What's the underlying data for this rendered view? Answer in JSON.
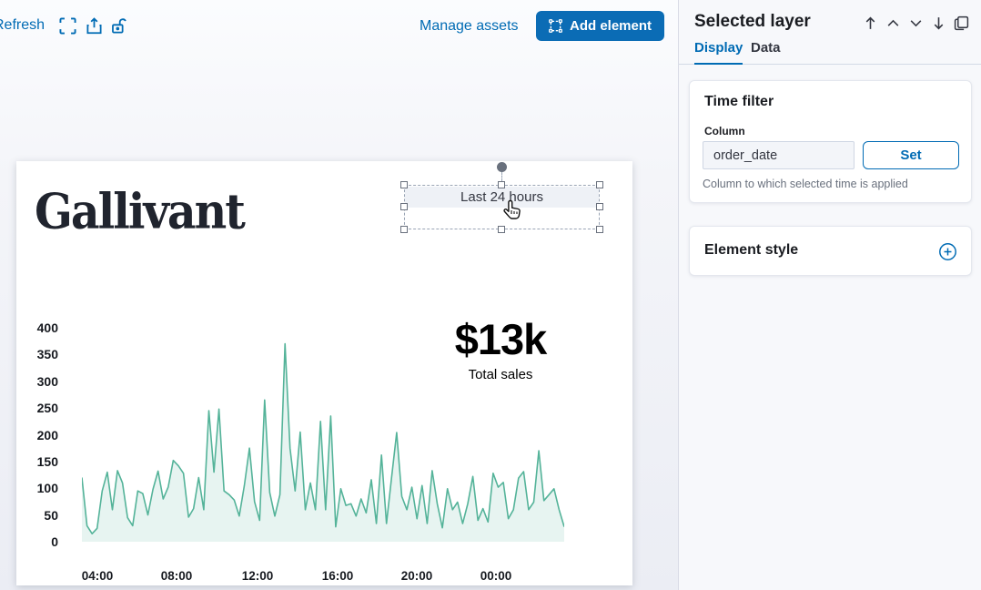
{
  "toolbar": {
    "refresh_label": "Refresh",
    "manage_assets_label": "Manage assets",
    "add_element_label": "Add element"
  },
  "sidebar": {
    "title": "Selected layer",
    "tabs": [
      {
        "label": "Display",
        "active": true
      },
      {
        "label": "Data",
        "active": false
      }
    ],
    "time_filter": {
      "title": "Time filter",
      "column_label": "Column",
      "column_value": "order_date",
      "set_label": "Set",
      "help": "Column to which selected time is applied"
    },
    "element_style": {
      "title": "Element style"
    }
  },
  "canvas": {
    "logo": "Gallivant",
    "time_filter_element": {
      "label": "Last 24 hours"
    },
    "metric": {
      "value": "$13k",
      "label": "Total sales"
    }
  },
  "chart_data": {
    "type": "area",
    "xlabel": "",
    "ylabel": "",
    "x_ticks": [
      "04:00",
      "08:00",
      "12:00",
      "16:00",
      "20:00",
      "00:00"
    ],
    "y_ticks": [
      400,
      350,
      300,
      250,
      200,
      150,
      100,
      50,
      0
    ],
    "ylim": [
      0,
      400
    ],
    "grid": false,
    "legend": false,
    "line_color": "#54b399",
    "fill_color": "rgba(84,179,153,0.14)",
    "values": [
      120,
      30,
      15,
      25,
      95,
      130,
      60,
      133,
      110,
      45,
      30,
      95,
      90,
      50,
      98,
      132,
      80,
      102,
      152,
      142,
      128,
      46,
      62,
      120,
      60,
      245,
      130,
      248,
      95,
      88,
      78,
      48,
      105,
      175,
      75,
      40,
      265,
      92,
      48,
      88,
      370,
      175,
      95,
      205,
      60,
      110,
      60,
      225,
      60,
      235,
      28,
      99,
      68,
      71,
      48,
      80,
      54,
      116,
      34,
      162,
      34,
      120,
      204,
      85,
      60,
      102,
      43,
      105,
      34,
      133,
      71,
      26,
      99,
      60,
      74,
      34,
      71,
      122,
      40,
      62,
      37,
      128,
      102,
      111,
      43,
      60,
      119,
      131,
      60,
      74,
      170,
      77,
      88,
      99,
      60,
      28
    ]
  },
  "colors": {
    "accent_blue": "#006bb4",
    "button_bg": "#0b6cb5",
    "chart_green": "#54b399",
    "text_dark": "#1a1c21",
    "text_subdued": "#69707d"
  }
}
